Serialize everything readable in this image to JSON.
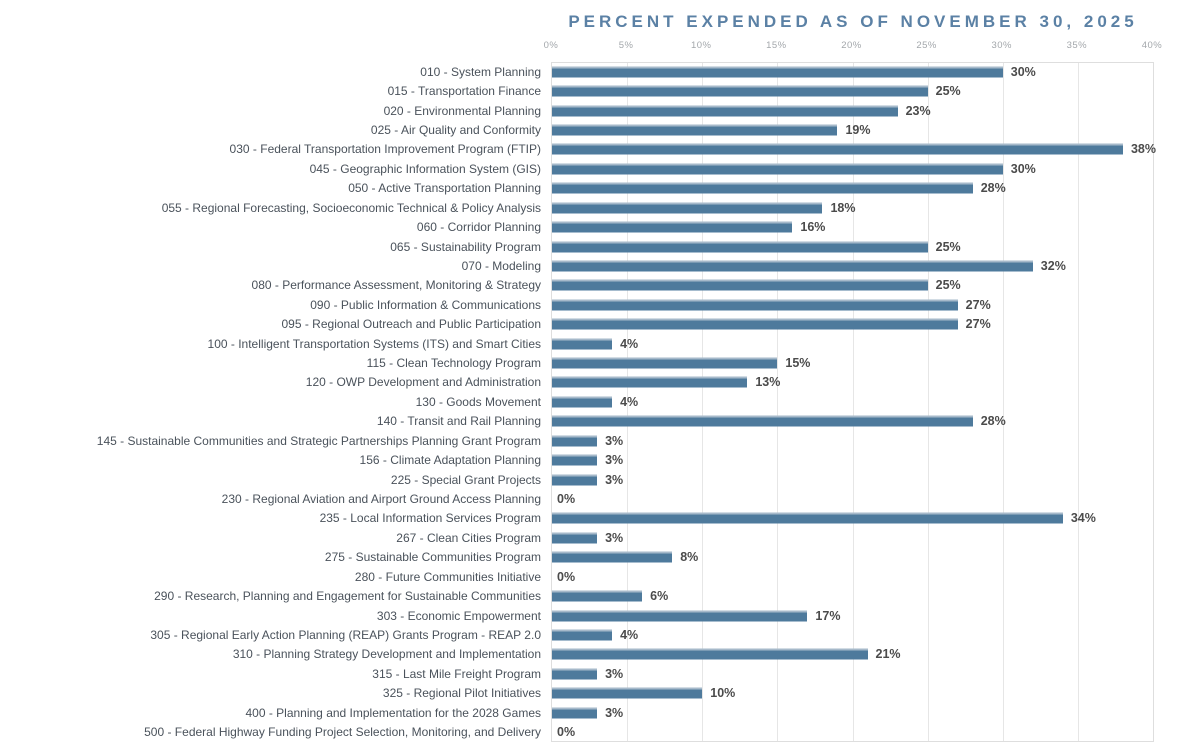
{
  "chart_data": {
    "type": "bar",
    "orientation": "horizontal",
    "title": "PERCENT EXPENDED AS OF NOVEMBER 30, 2025",
    "xlabel": "",
    "ylabel": "",
    "xlim": [
      0,
      40
    ],
    "x_ticks": [
      "0%",
      "5%",
      "10%",
      "15%",
      "20%",
      "25%",
      "30%",
      "35%",
      "40%"
    ],
    "grid": true,
    "legend": "none",
    "bar_color": "#4e7a9c",
    "bar_highlight_color": "#a6b9ca",
    "title_color": "#5b81a5",
    "categories": [
      "010 - System Planning",
      "015 - Transportation Finance",
      "020 - Environmental Planning",
      "025 - Air Quality and Conformity",
      "030 - Federal Transportation Improvement Program (FTIP)",
      "045 - Geographic Information System (GIS)",
      "050 - Active Transportation Planning",
      "055 - Regional Forecasting, Socioeconomic Technical & Policy Analysis",
      "060 - Corridor Planning",
      "065 - Sustainability Program",
      "070 - Modeling",
      "080 - Performance Assessment, Monitoring & Strategy",
      "090 - Public Information & Communications",
      "095 - Regional Outreach and Public Participation",
      "100 - Intelligent Transportation Systems (ITS) and Smart Cities",
      "115 - Clean Technology Program",
      "120 - OWP Development and Administration",
      "130 - Goods Movement",
      "140 - Transit and Rail Planning",
      "145 - Sustainable Communities and Strategic Partnerships Planning Grant Program",
      "156 - Climate Adaptation Planning",
      "225 - Special Grant Projects",
      "230 - Regional Aviation and Airport Ground Access Planning",
      "235 - Local Information Services Program",
      "267 - Clean Cities Program",
      "275 - Sustainable Communities Program",
      "280 - Future Communities Initiative",
      "290 - Research, Planning and Engagement for Sustainable Communities",
      "303 - Economic Empowerment",
      "305 - Regional Early Action Planning (REAP) Grants Program - REAP 2.0",
      "310 - Planning Strategy Development and Implementation",
      "315 - Last Mile Freight Program",
      "325 - Regional Pilot Initiatives",
      "400 - Planning and Implementation for the 2028 Games",
      "500 - Federal Highway Funding Project Selection, Monitoring, and Delivery"
    ],
    "values": [
      30,
      25,
      23,
      19,
      38,
      30,
      28,
      18,
      16,
      25,
      32,
      25,
      27,
      27,
      4,
      15,
      13,
      4,
      28,
      3,
      3,
      3,
      0,
      34,
      3,
      8,
      0,
      6,
      17,
      4,
      21,
      3,
      10,
      3,
      0
    ],
    "value_labels": [
      "30%",
      "25%",
      "23%",
      "19%",
      "38%",
      "30%",
      "28%",
      "18%",
      "16%",
      "25%",
      "32%",
      "25%",
      "27%",
      "27%",
      "4%",
      "15%",
      "13%",
      "4%",
      "28%",
      "3%",
      "3%",
      "3%",
      "0%",
      "34%",
      "3%",
      "8%",
      "0%",
      "6%",
      "17%",
      "4%",
      "21%",
      "3%",
      "10%",
      "3%",
      "0%"
    ]
  }
}
